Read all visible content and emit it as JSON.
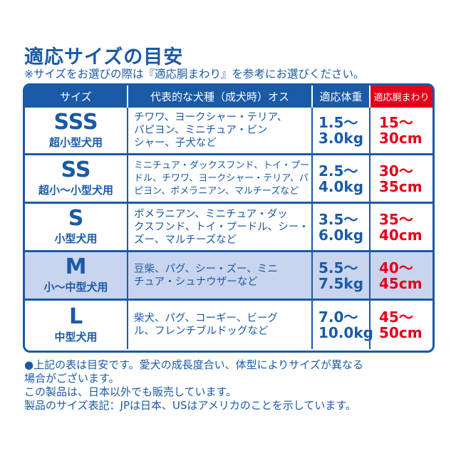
{
  "title": "適応サイズの目安",
  "note": "※サイズをお選びの際は『適応胴まわり』を参考にお選びください。",
  "table": {
    "headers": [
      "サイズ",
      "代表的な犬種（成犬時）オス",
      "適応体重",
      "適応胴まわり"
    ],
    "rows": [
      {
        "size": "SSS",
        "use": "超小型犬用",
        "breeds": [
          "チワワ、ヨークシャー・テリア、",
          "パピヨン、ミニチュア・ピン",
          "シャー、子犬など"
        ],
        "weight": [
          "1.5～",
          "3.0kg"
        ],
        "girth": [
          "15～",
          "30cm"
        ]
      },
      {
        "size": "SS",
        "use": "超小～小型犬用",
        "breeds": [
          "ミニチュア・ダックスフンド、トイ・プー",
          "ドル、チワワ、ヨークシャー・テリア、パ",
          "ピヨン、ポメラニアン、マルチーズなど"
        ],
        "weight": [
          "2.5～",
          "4.0kg"
        ],
        "girth": [
          "30～",
          "35cm"
        ]
      },
      {
        "size": "S",
        "use": "小型犬用",
        "breeds": [
          "ポメラニアン、ミニチュア・ダッ",
          "クスフンド、トイ・プードル、シー・",
          "ズー、マルチーズなど"
        ],
        "weight": [
          "3.5～",
          "6.0kg"
        ],
        "girth": [
          "35～",
          "40cm"
        ]
      },
      {
        "size": "M",
        "use": "小～中型犬用",
        "breeds": [
          "豆柴、パグ、シー・ズー、ミニ",
          "チュア・シュナウザーなど"
        ],
        "weight": [
          "5.5～",
          "7.5kg"
        ],
        "girth": [
          "40～",
          "45cm"
        ]
      },
      {
        "size": "L",
        "use": "中型犬用",
        "breeds": [
          "柴犬、パグ、コーギー、ビーグ",
          "ル、フレンチブルドッグなど"
        ],
        "weight": [
          "7.0～",
          "10.0kg"
        ],
        "girth": [
          "45～",
          "50cm"
        ]
      }
    ]
  },
  "footer": [
    "●上記の表は目安です。愛犬の成長度合い、体型によりサイズが異なる",
    "場合がございます。",
    "この製品は、日本以外でも販売しています。",
    "製品のサイズ表記：JPは日本、USはアメリカのことを示しています。"
  ],
  "colors": {
    "blue": "#1a5aa6",
    "red": "#e2001a",
    "highlight_row": "#c9d4ee"
  }
}
